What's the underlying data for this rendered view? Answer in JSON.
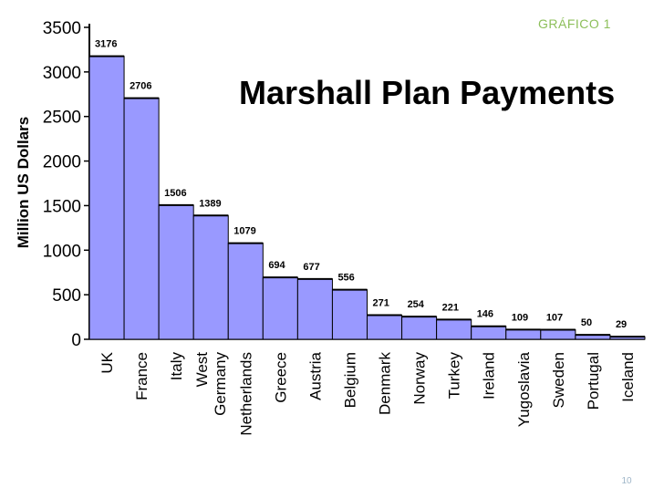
{
  "slide": {
    "label": "GRÁFICO 1",
    "page_number": "10"
  },
  "colors": {
    "bar_fill": "#9999ff",
    "bar_stroke": "#000000",
    "label_accent": "#8dbf5a"
  },
  "chart_data": {
    "type": "bar",
    "title": "Marshall Plan Payments",
    "xlabel": "",
    "ylabel": "Million US Dollars",
    "ylim": [
      0,
      3500
    ],
    "yticks": [
      "0",
      "500",
      "1000",
      "1500",
      "2000",
      "2500",
      "3000",
      "3500"
    ],
    "categories": [
      "UK",
      "France",
      "Italy",
      "West Germany",
      "Netherlands",
      "Greece",
      "Austria",
      "Belgium",
      "Denmark",
      "Norway",
      "Turkey",
      "Ireland",
      "Yugoslavia",
      "Sweden",
      "Portugal",
      "Iceland"
    ],
    "category_lines": [
      [
        "UK"
      ],
      [
        "France"
      ],
      [
        "Italy"
      ],
      [
        "West",
        "Germany"
      ],
      [
        "Netherlands"
      ],
      [
        "Greece"
      ],
      [
        "Austria"
      ],
      [
        "Belgium"
      ],
      [
        "Denmark"
      ],
      [
        "Norway"
      ],
      [
        "Turkey"
      ],
      [
        "Ireland"
      ],
      [
        "Yugoslavia"
      ],
      [
        "Sweden"
      ],
      [
        "Portugal"
      ],
      [
        "Iceland"
      ]
    ],
    "values": [
      3176,
      2706,
      1506,
      1389,
      1079,
      694,
      677,
      556,
      271,
      254,
      221,
      146,
      109,
      107,
      50,
      29
    ],
    "grid": false,
    "legend": "none"
  }
}
